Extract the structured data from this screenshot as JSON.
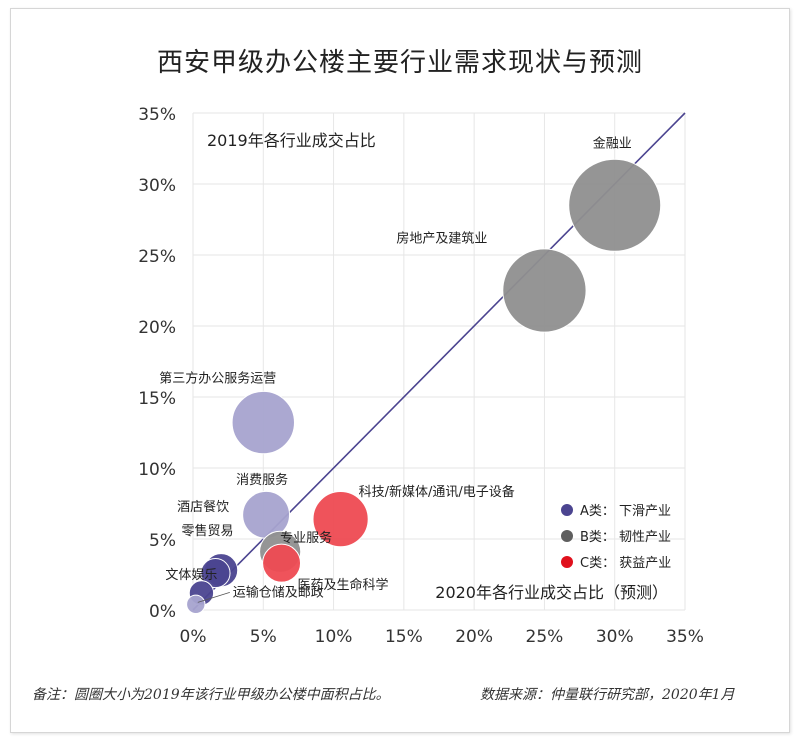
{
  "title": "西安甲级办公楼主要行业需求现状与预测",
  "note_left": "备注：圆圈大小为2019年该行业甲级办公楼中面积占比。",
  "note_right": "数据来源：仲量联行研究部，2020年1月",
  "colors": {
    "A": "#a6a3cf",
    "A_dark": "#4b4490",
    "B": "#8f8f8f",
    "C": "#ee4a52",
    "line": "#4b4490",
    "grid": "#e6e6e6"
  },
  "chart_data": {
    "type": "scatter",
    "bubble": true,
    "title": "西安甲级办公楼主要行业需求现状与预测",
    "xlabel": "2020年各行业成交占比（预测）",
    "ylabel": "2019年各行业成交占比",
    "xlim": [
      0,
      35
    ],
    "ylim": [
      0,
      35
    ],
    "xticks": [
      "0%",
      "5%",
      "10%",
      "15%",
      "20%",
      "25%",
      "30%",
      "35%"
    ],
    "yticks": [
      "0%",
      "5%",
      "10%",
      "15%",
      "20%",
      "25%",
      "30%",
      "35%"
    ],
    "grid": true,
    "diagonal": true,
    "legend_position": "right",
    "legend": [
      {
        "key": "A",
        "label": "A类： 下滑产业"
      },
      {
        "key": "B",
        "label": "B类： 韧性产业"
      },
      {
        "key": "C",
        "label": "C类： 获益产业"
      }
    ],
    "points": [
      {
        "label": "金融业",
        "x": 30.0,
        "y": 28.5,
        "size": 10.0,
        "group": "B"
      },
      {
        "label": "房地产及建筑业",
        "x": 25.0,
        "y": 22.5,
        "size": 8.2,
        "group": "B"
      },
      {
        "label": "第三方办公服务运营",
        "x": 5.0,
        "y": 13.2,
        "size": 4.6,
        "group": "A"
      },
      {
        "label": "消费服务",
        "x": 5.2,
        "y": 6.7,
        "size": 2.6,
        "group": "A"
      },
      {
        "label": "科技/新媒体/通讯/电子设备",
        "x": 10.5,
        "y": 6.4,
        "size": 3.6,
        "group": "C"
      },
      {
        "label": "专业服务",
        "x": 6.2,
        "y": 4.1,
        "size": 2.0,
        "group": "B"
      },
      {
        "label": "医药及生命科学",
        "x": 6.3,
        "y": 3.3,
        "size": 1.7,
        "group": "C"
      },
      {
        "label": "酒店餐饮",
        "x": 2.0,
        "y": 2.8,
        "size": 1.3,
        "group": "A_dark"
      },
      {
        "label": "零售贸易",
        "x": 1.6,
        "y": 2.6,
        "size": 1.0,
        "group": "A_dark"
      },
      {
        "label": "文体娱乐",
        "x": 0.6,
        "y": 1.2,
        "size": 0.7,
        "group": "A_dark"
      },
      {
        "label": "运输仓储及邮政",
        "x": 0.2,
        "y": 0.4,
        "size": 0.4,
        "group": "A"
      }
    ]
  }
}
